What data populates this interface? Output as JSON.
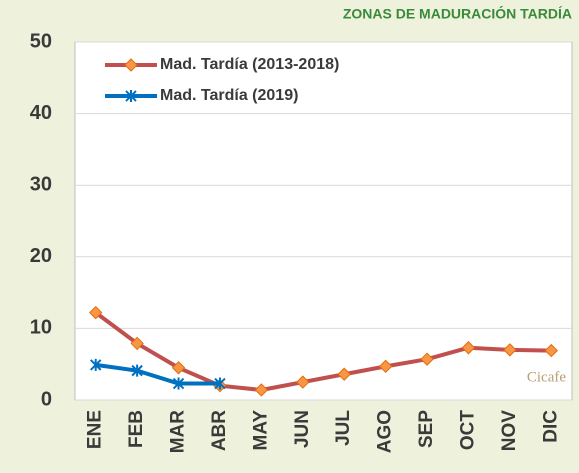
{
  "chart_data": {
    "type": "line",
    "title": "ZONAS DE MADURACIÓN TARDÍA",
    "watermark": "Cicafe",
    "categories": [
      "ENE",
      "FEB",
      "MAR",
      "ABR",
      "MAY",
      "JUN",
      "JUL",
      "AGO",
      "SEP",
      "OCT",
      "NOV",
      "DIC"
    ],
    "series": [
      {
        "name": "Mad. Tardía (2013-2018)",
        "color": "#c0504d",
        "marker_color": "#f79646",
        "marker": "diamond",
        "values": [
          12.2,
          7.9,
          4.5,
          2.0,
          1.4,
          2.5,
          3.6,
          4.7,
          5.7,
          7.3,
          7.0,
          6.9
        ]
      },
      {
        "name": "Mad. Tardía (2019)",
        "color": "#0070c0",
        "marker_color": "#0070c0",
        "marker": "star",
        "values": [
          4.9,
          4.1,
          2.3,
          2.3,
          null,
          null,
          null,
          null,
          null,
          null,
          null,
          null
        ]
      }
    ],
    "ylim": [
      0,
      50
    ],
    "yticks": [
      0,
      10,
      20,
      30,
      40,
      50
    ],
    "grid": true,
    "legend": "upper left"
  }
}
